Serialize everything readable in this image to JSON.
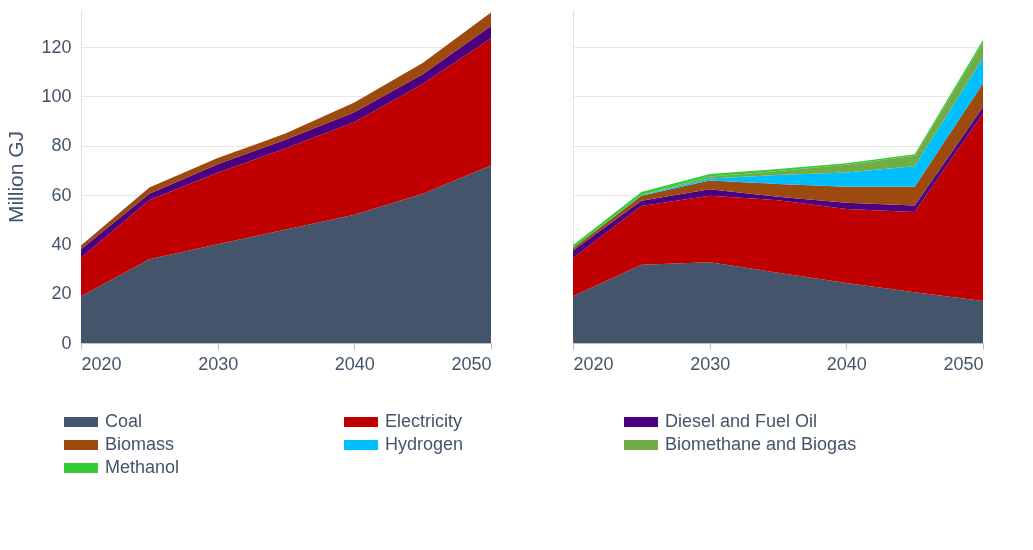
{
  "chart_data": [
    {
      "type": "area",
      "stacked": true,
      "ylabel": "Million GJ",
      "x": [
        2020,
        2025,
        2030,
        2035,
        2040,
        2045,
        2050
      ],
      "xlim": [
        2020,
        2050
      ],
      "xticks": [
        2020,
        2030,
        2040,
        2050
      ],
      "ylim": [
        0,
        135
      ],
      "yticks": [
        0,
        20,
        40,
        60,
        80,
        100,
        120
      ],
      "grid": "y",
      "legend": "bottom",
      "series": [
        {
          "name": "Coal",
          "color": "#44546a",
          "values": [
            19,
            34,
            40,
            46,
            52,
            60.5,
            72
          ]
        },
        {
          "name": "Electricity",
          "color": "#c00000",
          "values": [
            15.5,
            24,
            29,
            33,
            37.5,
            44.5,
            51.5
          ]
        },
        {
          "name": "Diesel and Fuel Oil",
          "color": "#4b0082",
          "values": [
            3.5,
            2.5,
            3.5,
            3.5,
            4,
            4,
            5
          ]
        },
        {
          "name": "Biomass",
          "color": "#9c4a0e",
          "values": [
            1.5,
            2.5,
            2.5,
            2.5,
            4,
            4.5,
            5.5
          ]
        }
      ]
    },
    {
      "type": "area",
      "stacked": true,
      "x": [
        2020,
        2025,
        2030,
        2035,
        2040,
        2045,
        2050
      ],
      "xlim": [
        2020,
        2050
      ],
      "xticks": [
        2020,
        2030,
        2040,
        2050
      ],
      "ylim": [
        0,
        135
      ],
      "yticks": [
        0,
        20,
        40,
        60,
        80,
        100,
        120
      ],
      "grid": "y",
      "legend": "bottom",
      "tick_labels": "x",
      "series": [
        {
          "name": "Coal",
          "color": "#44546a",
          "values": [
            19,
            31.7,
            32.7,
            28.5,
            24.3,
            20.6,
            17
          ]
        },
        {
          "name": "Electricity",
          "color": "#c00000",
          "values": [
            15.5,
            23.8,
            27,
            29.4,
            30,
            32.5,
            76
          ]
        },
        {
          "name": "Diesel and Fuel Oil",
          "color": "#4b0082",
          "values": [
            3,
            2.2,
            2.6,
            1.4,
            2.6,
            2.6,
            2.7
          ]
        },
        {
          "name": "Biomass",
          "color": "#9c4a0e",
          "values": [
            0.9,
            2,
            3.6,
            5.2,
            6.4,
            7.6,
            9.6
          ]
        },
        {
          "name": "Hydrogen",
          "color": "#00bfff",
          "values": [
            0,
            0.3,
            0.8,
            3.6,
            5.8,
            8.4,
            10.2
          ]
        },
        {
          "name": "Biomethane and Biogas",
          "color": "#70ad47",
          "values": [
            0,
            0,
            0.8,
            1.6,
            3.2,
            4.2,
            6.1
          ]
        },
        {
          "name": "Methanol",
          "color": "#33cc33",
          "values": [
            1.2,
            1.2,
            1,
            0.8,
            0.6,
            0.6,
            1.2
          ]
        }
      ]
    }
  ]
}
